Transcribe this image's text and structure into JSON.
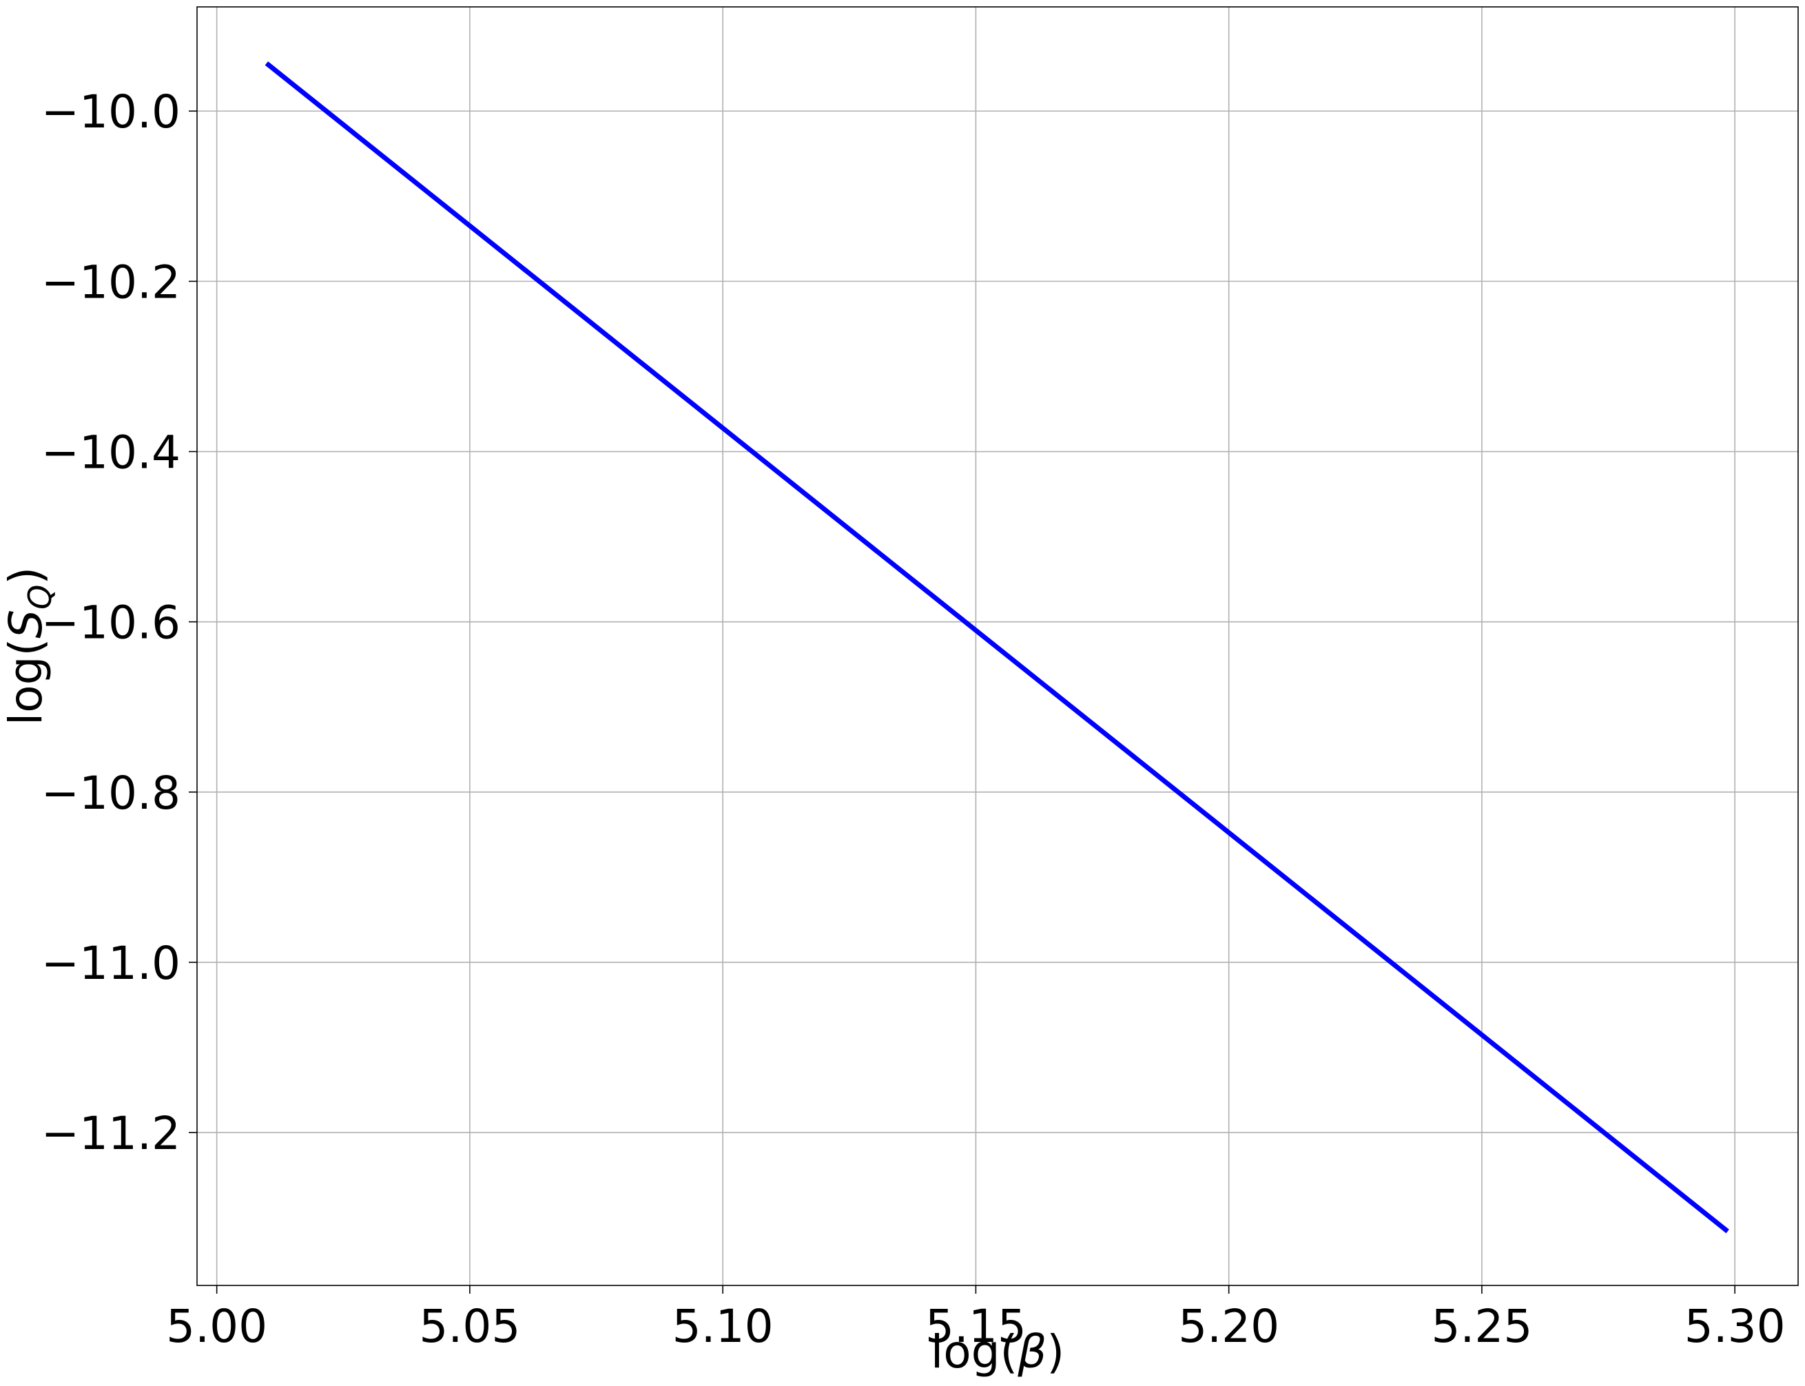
{
  "chart_data": {
    "type": "line",
    "xlabel": {
      "prefix": "log(",
      "symbol": "β",
      "suffix": ")"
    },
    "ylabel": {
      "prefix": "log(",
      "symbol": "S",
      "subscript": "Q",
      "suffix": ")"
    },
    "x": [
      5.0102,
      5.2982
    ],
    "series": [
      {
        "color": "#0000ff",
        "values": [
          -9.9456,
          -11.3143
        ]
      }
    ],
    "xlim": [
      4.9961,
      5.3125
    ],
    "ylim": [
      -11.3796,
      -9.8776
    ],
    "xticks": [
      {
        "value": 5.0,
        "label": "5.00"
      },
      {
        "value": 5.05,
        "label": "5.05"
      },
      {
        "value": 5.1,
        "label": "5.10"
      },
      {
        "value": 5.15,
        "label": "5.15"
      },
      {
        "value": 5.2,
        "label": "5.20"
      },
      {
        "value": 5.25,
        "label": "5.25"
      },
      {
        "value": 5.3,
        "label": "5.30"
      }
    ],
    "yticks": [
      {
        "value": -11.2,
        "label": "−11.2"
      },
      {
        "value": -11.0,
        "label": "−11.0"
      },
      {
        "value": -10.8,
        "label": "−10.8"
      },
      {
        "value": -10.6,
        "label": "−10.6"
      },
      {
        "value": -10.4,
        "label": "−10.4"
      },
      {
        "value": -10.2,
        "label": "−10.2"
      },
      {
        "value": -10.0,
        "label": "−10.0"
      }
    ],
    "grid": true
  }
}
